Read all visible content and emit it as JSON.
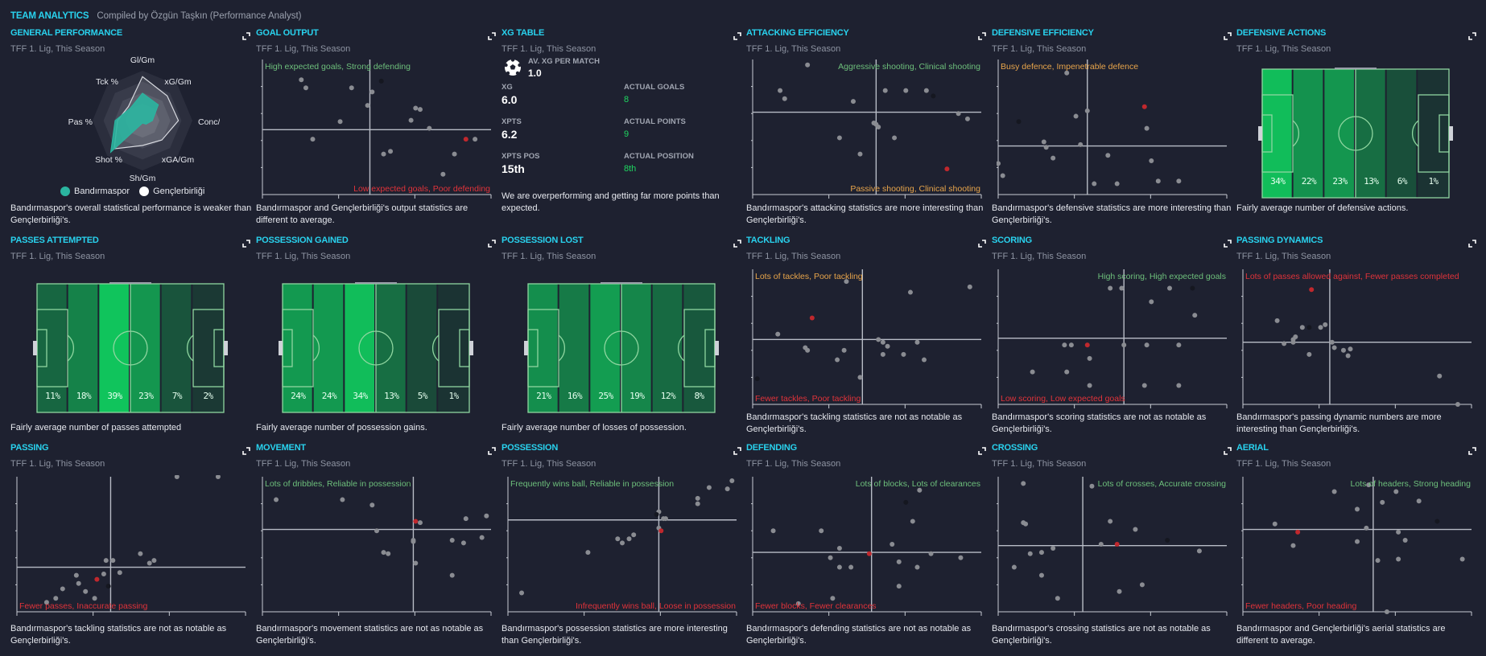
{
  "header": {
    "title": "TEAM ANALYTICS",
    "compiled_by": "Compiled by Özgün Taşkın (Performance Analyst)"
  },
  "subtitle": "TFF 1. Lig, This Season",
  "colors": {
    "accent": "#29d2ee",
    "team": "#2bb5a0",
    "opponent": "#ffffff",
    "highlight": "#c0282d",
    "opponent_point": "#151720",
    "league_point": "#8a8c92",
    "good": "#6dbf7b",
    "bad": "#e0333a",
    "mixed": "#e8a54b"
  },
  "cards": {
    "general_performance": {
      "title": "GENERAL PERFORMANCE",
      "description": "Bandırmaspor's overall statistical performance is weaker than Gençlerbirliği's.",
      "legend": [
        "Bandırmaspor",
        "Gençlerbirliği"
      ]
    },
    "goal_output": {
      "title": "GOAL OUTPUT",
      "quad_top": "High expected goals, Strong defending",
      "quad_bottom": "Low expected goals, Poor defending",
      "description": "Bandırmaspor and Gençlerbirliği's output statistics are different to average."
    },
    "xg_table": {
      "title": "XG TABLE",
      "av_label": "AV. XG PER MATCH",
      "av_value": "1.0",
      "rows": [
        {
          "label": "XG",
          "value": "6.0",
          "actual_label": "ACTUAL GOALS",
          "actual_value": "8"
        },
        {
          "label": "XPTS",
          "value": "6.2",
          "actual_label": "ACTUAL POINTS",
          "actual_value": "9"
        },
        {
          "label": "XPTS POS",
          "value": "15th",
          "actual_label": "ACTUAL POSITION",
          "actual_value": "8th"
        }
      ],
      "description": "We are overperforming and getting far more points than expected."
    },
    "attacking_efficiency": {
      "title": "ATTACKING EFFICIENCY",
      "quad_top": "Aggressive shooting, Clinical shooting",
      "quad_bottom": "Passive shooting, Clinical shooting",
      "description": "Bandırmaspor's attacking statistics are more interesting than Gençlerbirliği's."
    },
    "defensive_efficiency": {
      "title": "DEFENSIVE EFFICIENCY",
      "quad_top": "Busy defence, Impenetrable defence",
      "description": "Bandırmaspor's defensive statistics are more interesting than Gençlerbirliği's."
    },
    "defensive_actions": {
      "title": "DEFENSIVE ACTIONS",
      "zones": [
        "34%",
        "22%",
        "23%",
        "13%",
        "6%",
        "1%"
      ],
      "description": "Fairly average number of defensive actions."
    },
    "passes_attempted": {
      "title": "PASSES ATTEMPTED",
      "zones": [
        "11%",
        "18%",
        "39%",
        "23%",
        "7%",
        "2%"
      ],
      "description": "Fairly average number of passes attempted"
    },
    "possession_gained": {
      "title": "POSSESSION GAINED",
      "zones": [
        "24%",
        "24%",
        "34%",
        "13%",
        "5%",
        "1%"
      ],
      "description": "Fairly average number of possession gains."
    },
    "possession_lost": {
      "title": "POSSESSION LOST",
      "zones": [
        "21%",
        "16%",
        "25%",
        "19%",
        "12%",
        "8%"
      ],
      "description": "Fairly average number of losses of possession."
    },
    "tackling": {
      "title": "TACKLING",
      "quad_top": "Lots of tackles, Poor tackling",
      "quad_bottom": "Fewer tackles, Poor tackling",
      "description": "Bandırmaspor's tackling statistics are not as notable as Gençlerbirliği's."
    },
    "scoring": {
      "title": "SCORING",
      "quad_top": "High scoring, High expected goals",
      "quad_bottom": "Low scoring, Low expected goals",
      "description": "Bandırmaspor's scoring statistics are not as notable as Gençlerbirliği's."
    },
    "passing_dynamics": {
      "title": "PASSING DYNAMICS",
      "quad_top": "Lots of passes allowed against, Fewer passes completed",
      "description": "Bandırmaspor's passing dynamic numbers are more interesting than Gençlerbirliği's."
    },
    "passing": {
      "title": "PASSING",
      "quad_bottom": "Fewer passes, Inaccurate passing",
      "description": "Bandırmaspor's tackling statistics are not as notable as Gençlerbirliği's."
    },
    "movement": {
      "title": "MOVEMENT",
      "quad_top": "Lots of dribbles, Reliable in possession",
      "description": "Bandırmaspor's movement statistics are not as notable as Gençlerbirliği's."
    },
    "possession": {
      "title": "POSSESSION",
      "quad_top": "Frequently wins ball, Reliable in possession",
      "quad_bottom": "Infrequently wins ball, Loose in possession",
      "description": "Bandırmaspor's possession statistics are more interesting than Gençlerbirliği's."
    },
    "defending": {
      "title": "DEFENDING",
      "quad_top": "Lots of blocks, Lots of clearances",
      "quad_bottom": "Fewer blocks, Fewer clearances",
      "description": "Bandırmaspor's defending statistics are not as notable as Gençlerbirliği's."
    },
    "crossing": {
      "title": "CROSSING",
      "quad_top": "Lots of crosses, Accurate crossing",
      "description": "Bandırmaspor's crossing statistics are not as notable as Gençlerbirliği's."
    },
    "aerial": {
      "title": "AERIAL",
      "quad_top": "Lots of headers, Strong heading",
      "quad_bottom": "Fewer headers, Poor heading",
      "description": "Bandırmaspor and Gençlerbirliği's aerial statistics are different to average."
    }
  },
  "chart_data": [
    {
      "id": "general_performance",
      "type": "radar",
      "axes": [
        "Gl/Gm",
        "xG/Gm",
        "Conc/Gm",
        "xGA/Gm",
        "Sh/Gm",
        "Shot %",
        "Pas %",
        "Tck %"
      ],
      "series": [
        {
          "name": "Bandırmaspor",
          "values": [
            0.55,
            0.45,
            0.2,
            0.1,
            0.05,
            0.9,
            0.55,
            0.35
          ]
        },
        {
          "name": "Gençlerbirliği",
          "values": [
            0.88,
            0.7,
            0.72,
            0.55,
            0.5,
            0.8,
            0.5,
            0.4
          ]
        }
      ],
      "range": [
        0,
        1
      ]
    },
    {
      "id": "goal_output",
      "type": "scatter",
      "xdiv": 0.47,
      "ydiv": 0.48,
      "points": [
        [
          0.17,
          0.85
        ],
        [
          0.19,
          0.79
        ],
        [
          0.39,
          0.79
        ],
        [
          0.48,
          0.76
        ],
        [
          0.46,
          0.66
        ],
        [
          0.67,
          0.64
        ],
        [
          0.69,
          0.63
        ],
        [
          0.34,
          0.54
        ],
        [
          0.65,
          0.55
        ],
        [
          0.73,
          0.49
        ],
        [
          0.22,
          0.41
        ],
        [
          0.93,
          0.41
        ],
        [
          0.56,
          0.32
        ],
        [
          0.53,
          0.3
        ],
        [
          0.84,
          0.3
        ],
        [
          0.79,
          0.15
        ]
      ],
      "team": [
        0.89,
        0.41
      ],
      "opponent": [
        0.52,
        0.84
      ]
    },
    {
      "id": "attacking_efficiency",
      "type": "scatter",
      "xdiv": 0.54,
      "ydiv": 0.61,
      "points": [
        [
          0.24,
          0.96
        ],
        [
          0.12,
          0.77
        ],
        [
          0.14,
          0.71
        ],
        [
          0.44,
          0.69
        ],
        [
          0.58,
          0.77
        ],
        [
          0.67,
          0.77
        ],
        [
          0.76,
          0.77
        ],
        [
          0.9,
          0.6
        ],
        [
          0.94,
          0.56
        ],
        [
          0.53,
          0.53
        ],
        [
          0.54,
          0.52
        ],
        [
          0.55,
          0.5
        ],
        [
          0.38,
          0.42
        ],
        [
          0.62,
          0.42
        ],
        [
          0.47,
          0.3
        ]
      ],
      "team": [
        0.85,
        0.19
      ],
      "opponent": [
        0.79,
        0.73
      ]
    },
    {
      "id": "defensive_efficiency",
      "type": "scatter",
      "xdiv": 0.39,
      "ydiv": 0.36,
      "points": [
        [
          0.3,
          0.9
        ],
        [
          0.39,
          0.62
        ],
        [
          0.34,
          0.58
        ],
        [
          0.2,
          0.39
        ],
        [
          0.21,
          0.35
        ],
        [
          0.36,
          0.37
        ],
        [
          0.65,
          0.49
        ],
        [
          0.24,
          0.27
        ],
        [
          0.48,
          0.29
        ],
        [
          0.0,
          0.23
        ],
        [
          0.02,
          0.14
        ],
        [
          0.42,
          0.08
        ],
        [
          0.52,
          0.08
        ],
        [
          0.67,
          0.25
        ],
        [
          0.7,
          0.1
        ],
        [
          0.79,
          0.1
        ]
      ],
      "team": [
        0.64,
        0.65
      ],
      "opponent": [
        0.09,
        0.54
      ]
    },
    {
      "id": "tackling",
      "type": "scatter",
      "xdiv": 0.48,
      "ydiv": 0.48,
      "points": [
        [
          0.41,
          0.91
        ],
        [
          0.69,
          0.83
        ],
        [
          0.95,
          0.87
        ],
        [
          0.11,
          0.52
        ],
        [
          0.23,
          0.42
        ],
        [
          0.24,
          0.4
        ],
        [
          0.4,
          0.4
        ],
        [
          0.37,
          0.33
        ],
        [
          0.47,
          0.2
        ],
        [
          0.55,
          0.48
        ],
        [
          0.57,
          0.46
        ],
        [
          0.59,
          0.43
        ],
        [
          0.57,
          0.37
        ],
        [
          0.66,
          0.37
        ],
        [
          0.72,
          0.46
        ],
        [
          0.75,
          0.33
        ]
      ],
      "team": [
        0.26,
        0.64
      ],
      "opponent": [
        0.02,
        0.19
      ]
    },
    {
      "id": "scoring",
      "type": "scatter",
      "xdiv": 0.55,
      "ydiv": 0.49,
      "points": [
        [
          0.49,
          0.86
        ],
        [
          0.54,
          0.86
        ],
        [
          0.75,
          0.86
        ],
        [
          0.67,
          0.76
        ],
        [
          0.86,
          0.66
        ],
        [
          0.29,
          0.44
        ],
        [
          0.32,
          0.44
        ],
        [
          0.55,
          0.44
        ],
        [
          0.65,
          0.44
        ],
        [
          0.79,
          0.44
        ],
        [
          0.4,
          0.34
        ],
        [
          0.15,
          0.24
        ],
        [
          0.3,
          0.24
        ],
        [
          0.4,
          0.14
        ],
        [
          0.64,
          0.14
        ],
        [
          0.79,
          0.14
        ]
      ],
      "team": [
        0.39,
        0.44
      ],
      "opponent": [
        0.85,
        0.86
      ]
    },
    {
      "id": "passing_dynamics",
      "type": "scatter",
      "xdiv": 0.38,
      "ydiv": 0.46,
      "points": [
        [
          0.15,
          0.62
        ],
        [
          0.26,
          0.57
        ],
        [
          0.36,
          0.59
        ],
        [
          0.34,
          0.57
        ],
        [
          0.23,
          0.5
        ],
        [
          0.22,
          0.48
        ],
        [
          0.18,
          0.45
        ],
        [
          0.22,
          0.46
        ],
        [
          0.29,
          0.37
        ],
        [
          0.39,
          0.46
        ],
        [
          0.4,
          0.42
        ],
        [
          0.44,
          0.4
        ],
        [
          0.47,
          0.41
        ],
        [
          0.46,
          0.36
        ],
        [
          0.86,
          0.21
        ],
        [
          0.94,
          0.0
        ]
      ],
      "team": [
        0.3,
        0.85
      ],
      "opponent": [
        0.29,
        0.57
      ]
    },
    {
      "id": "passing",
      "type": "scatter",
      "xdiv": 0.41,
      "ydiv": 0.33,
      "points": [
        [
          0.7,
          1.0
        ],
        [
          0.88,
          1.0
        ],
        [
          0.54,
          0.43
        ],
        [
          0.39,
          0.38
        ],
        [
          0.42,
          0.38
        ],
        [
          0.58,
          0.36
        ],
        [
          0.6,
          0.38
        ],
        [
          0.38,
          0.28
        ],
        [
          0.45,
          0.29
        ],
        [
          0.26,
          0.27
        ],
        [
          0.27,
          0.21
        ],
        [
          0.2,
          0.17
        ],
        [
          0.3,
          0.15
        ],
        [
          0.34,
          0.1
        ],
        [
          0.17,
          0.1
        ],
        [
          0.13,
          0.07
        ]
      ],
      "team": [
        0.35,
        0.24
      ],
      "opponent": [
        0.4,
        0.19
      ]
    },
    {
      "id": "movement",
      "type": "scatter",
      "xdiv": 0.66,
      "ydiv": 0.61,
      "points": [
        [
          0.06,
          0.83
        ],
        [
          0.35,
          0.83
        ],
        [
          0.48,
          0.79
        ],
        [
          0.69,
          0.66
        ],
        [
          0.89,
          0.69
        ],
        [
          0.98,
          0.71
        ],
        [
          0.5,
          0.6
        ],
        [
          0.66,
          0.53
        ],
        [
          0.66,
          0.52
        ],
        [
          0.83,
          0.53
        ],
        [
          0.88,
          0.51
        ],
        [
          0.96,
          0.55
        ],
        [
          0.53,
          0.44
        ],
        [
          0.55,
          0.43
        ],
        [
          0.67,
          0.36
        ],
        [
          0.83,
          0.27
        ]
      ],
      "team": [
        0.67,
        0.67
      ],
      "opponent": [
        0.64,
        0.95
      ]
    },
    {
      "id": "possession",
      "type": "scatter",
      "xdiv": 0.66,
      "ydiv": 0.68,
      "points": [
        [
          0.98,
          0.97
        ],
        [
          0.88,
          0.92
        ],
        [
          0.96,
          0.91
        ],
        [
          0.83,
          0.84
        ],
        [
          0.83,
          0.8
        ],
        [
          0.66,
          0.74
        ],
        [
          0.68,
          0.69
        ],
        [
          0.69,
          0.69
        ],
        [
          0.66,
          0.62
        ],
        [
          0.48,
          0.54
        ],
        [
          0.5,
          0.51
        ],
        [
          0.53,
          0.54
        ],
        [
          0.55,
          0.57
        ],
        [
          0.35,
          0.44
        ],
        [
          0.06,
          0.14
        ]
      ],
      "team": [
        0.67,
        0.6
      ],
      "opponent": [
        0.65,
        0.72
      ]
    },
    {
      "id": "defending",
      "type": "scatter",
      "xdiv": 0.52,
      "ydiv": 0.44,
      "points": [
        [
          0.73,
          0.9
        ],
        [
          0.7,
          0.67
        ],
        [
          0.09,
          0.6
        ],
        [
          0.3,
          0.6
        ],
        [
          0.61,
          0.5
        ],
        [
          0.38,
          0.47
        ],
        [
          0.34,
          0.4
        ],
        [
          0.38,
          0.33
        ],
        [
          0.43,
          0.33
        ],
        [
          0.64,
          0.37
        ],
        [
          0.78,
          0.43
        ],
        [
          0.91,
          0.4
        ],
        [
          0.72,
          0.33
        ],
        [
          0.64,
          0.19
        ],
        [
          0.35,
          0.1
        ],
        [
          0.2,
          0.06
        ]
      ],
      "team": [
        0.51,
        0.43
      ],
      "opponent": [
        0.67,
        0.81
      ]
    },
    {
      "id": "crossing",
      "type": "scatter",
      "xdiv": 0.37,
      "ydiv": 0.49,
      "points": [
        [
          0.11,
          0.95
        ],
        [
          0.41,
          0.93
        ],
        [
          0.11,
          0.66
        ],
        [
          0.12,
          0.65
        ],
        [
          0.49,
          0.67
        ],
        [
          0.6,
          0.61
        ],
        [
          0.45,
          0.5
        ],
        [
          0.14,
          0.43
        ],
        [
          0.19,
          0.44
        ],
        [
          0.24,
          0.47
        ],
        [
          0.07,
          0.33
        ],
        [
          0.19,
          0.27
        ],
        [
          0.26,
          0.1
        ],
        [
          0.53,
          0.15
        ],
        [
          0.63,
          0.2
        ],
        [
          0.88,
          0.45
        ]
      ],
      "team": [
        0.52,
        0.5
      ],
      "opponent": [
        0.74,
        0.53
      ]
    },
    {
      "id": "aerial",
      "type": "scatter",
      "xdiv": 0.57,
      "ydiv": 0.61,
      "points": [
        [
          0.4,
          0.89
        ],
        [
          0.55,
          0.94
        ],
        [
          0.67,
          0.89
        ],
        [
          0.61,
          0.81
        ],
        [
          0.77,
          0.82
        ],
        [
          0.5,
          0.76
        ],
        [
          0.14,
          0.65
        ],
        [
          0.54,
          0.62
        ],
        [
          0.68,
          0.59
        ],
        [
          0.71,
          0.53
        ],
        [
          0.22,
          0.49
        ],
        [
          0.5,
          0.52
        ],
        [
          0.59,
          0.38
        ],
        [
          0.68,
          0.39
        ],
        [
          0.96,
          0.39
        ],
        [
          0.63,
          0.0
        ]
      ],
      "team": [
        0.24,
        0.59
      ],
      "opponent": [
        0.85,
        0.67
      ]
    }
  ]
}
